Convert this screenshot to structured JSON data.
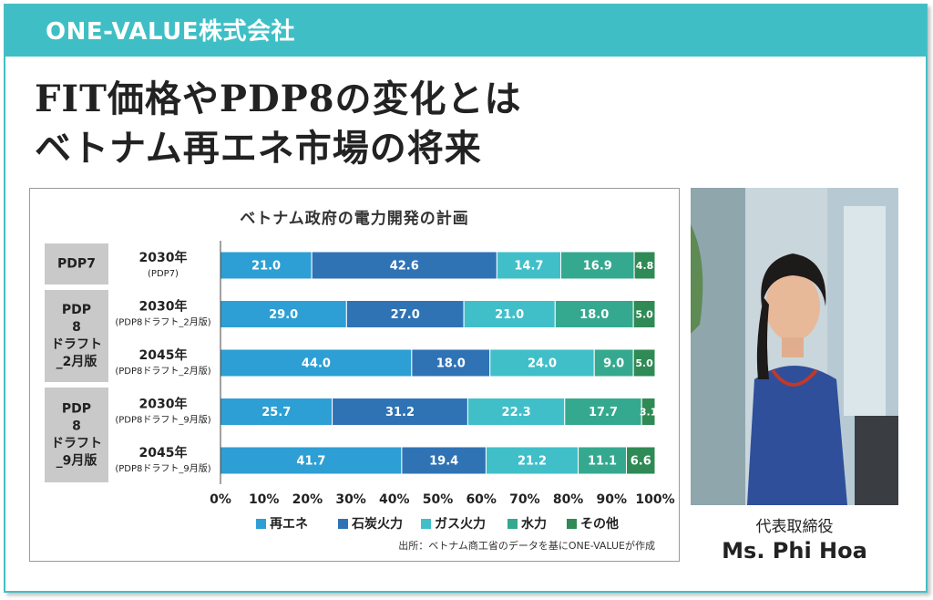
{
  "header": {
    "company": "ONE-VALUE株式会社",
    "headline_lines": [
      "FIT価格やPDP8の変化とは",
      "ベトナム再エネ市場の将来"
    ]
  },
  "person": {
    "role": "代表取締役",
    "name": "Ms. Phi Hoa",
    "photo_icon": "portrait-photo-icon"
  },
  "colors": {
    "banner": "#3fbfc5",
    "group_label_bg": "#c9c9c9"
  },
  "chart_data": {
    "type": "bar",
    "orientation": "horizontal",
    "stacked": true,
    "percent": true,
    "title": "ベトナム政府の電力開発の計画",
    "groups": [
      {
        "label": "PDP7",
        "rows": [
          0
        ]
      },
      {
        "label": "PDP 8 ドラフト _2月版",
        "rows": [
          1,
          2
        ]
      },
      {
        "label": "PDP 8 ドラフト _9月版",
        "rows": [
          3,
          4
        ]
      }
    ],
    "categories": [
      {
        "year": "2030年",
        "sub": "(PDP7)"
      },
      {
        "year": "2030年",
        "sub": "(PDP8ドラフト_2月版)"
      },
      {
        "year": "2045年",
        "sub": "(PDP8ドラフト_2月版)"
      },
      {
        "year": "2030年",
        "sub": "(PDP8ドラフト_9月版)"
      },
      {
        "year": "2045年",
        "sub": "(PDP8ドラフト_9月版)"
      }
    ],
    "series": [
      {
        "name": "再エネ",
        "color": "#2d9fd4",
        "values": [
          21.0,
          29.0,
          44.0,
          25.7,
          41.7
        ],
        "labels": [
          "21.0",
          "29.0",
          "44.0",
          "25.7",
          "41.7"
        ]
      },
      {
        "name": "石炭火力",
        "color": "#2f73b5",
        "values": [
          42.6,
          27.0,
          18.0,
          31.2,
          19.4
        ],
        "labels": [
          "42.6",
          "27.0",
          "18.0",
          "31.2",
          "19.4"
        ]
      },
      {
        "name": "ガス火力",
        "color": "#40bfc9",
        "values": [
          14.7,
          21.0,
          24.0,
          22.3,
          21.2
        ],
        "labels": [
          "14.7",
          "21.0",
          "24.0",
          "22.3",
          "21.2"
        ]
      },
      {
        "name": "水力",
        "color": "#35a98f",
        "values": [
          16.9,
          18.0,
          9.0,
          17.7,
          11.1
        ],
        "labels": [
          "16.9",
          "18.0",
          "9.0",
          "17.7",
          "11.1"
        ]
      },
      {
        "name": "その他",
        "color": "#2f8a55",
        "values": [
          4.8,
          5.0,
          5.0,
          3.1,
          6.6
        ],
        "labels": [
          "4.8",
          "5.0",
          "5.0",
          "3.1",
          "6.6"
        ]
      }
    ],
    "x_ticks": [
      "0%",
      "10%",
      "20%",
      "30%",
      "40%",
      "50%",
      "60%",
      "70%",
      "80%",
      "90%",
      "100%"
    ],
    "xlim": [
      0,
      100
    ],
    "grid": false,
    "legend_position": "bottom",
    "source": "出所：ベトナム商工省のデータを基にONE-VALUEが作成"
  }
}
